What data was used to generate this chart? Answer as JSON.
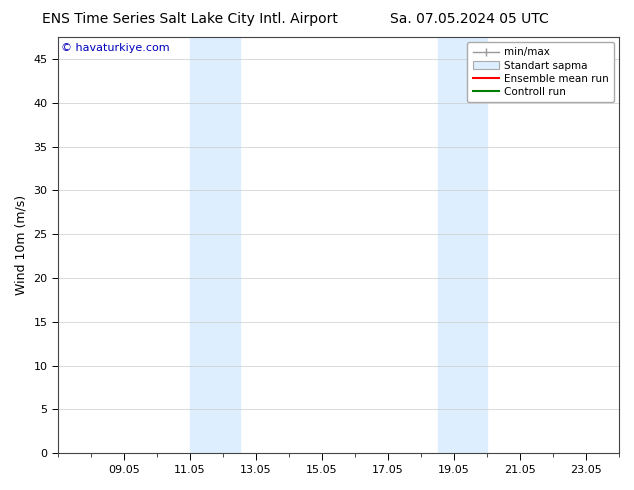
{
  "title_left": "ENS Time Series Salt Lake City Intl. Airport",
  "title_right": "Sa. 07.05.2024 05 UTC",
  "ylabel": "Wind 10m (m/s)",
  "watermark": "© havaturkiye.com",
  "ylim": [
    0,
    47.5
  ],
  "yticks": [
    0,
    5,
    10,
    15,
    20,
    25,
    30,
    35,
    40,
    45
  ],
  "xtick_labels": [
    "09.05",
    "11.05",
    "13.05",
    "15.05",
    "17.05",
    "19.05",
    "21.05",
    "23.05"
  ],
  "xtick_positions": [
    2,
    4,
    6,
    8,
    10,
    12,
    14,
    16
  ],
  "xlim": [
    0,
    17
  ],
  "shade_bands": [
    {
      "xmin": 4.0,
      "xmax": 5.5
    },
    {
      "xmin": 11.5,
      "xmax": 13.0
    }
  ],
  "shade_color": "#ddeeff",
  "legend_labels": [
    "min/max",
    "Standart sapma",
    "Ensemble mean run",
    "Controll run"
  ],
  "legend_line_colors": [
    "#999999",
    "#bbbbbb",
    "#ff0000",
    "#008000"
  ],
  "bg_color": "#ffffff",
  "title_fontsize": 10,
  "ylabel_fontsize": 9,
  "tick_fontsize": 8,
  "watermark_color": "#0000bb",
  "watermark_fontsize": 8,
  "legend_fontsize": 7.5
}
